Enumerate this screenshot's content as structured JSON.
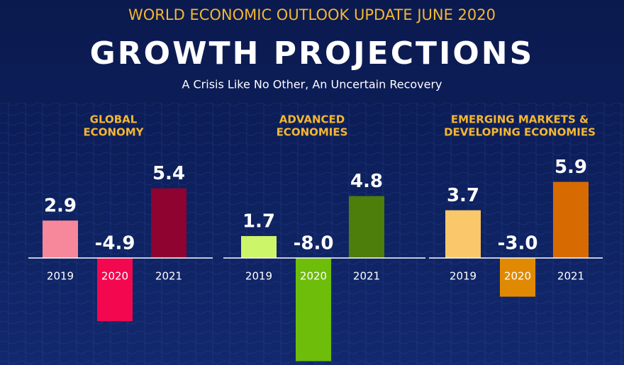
{
  "header": {
    "kicker": "WORLD ECONOMIC OUTLOOK UPDATE JUNE 2020",
    "title": "GROWTH PROJECTIONS",
    "subtitle": "A Crisis Like No Other, An Uncertain Recovery"
  },
  "chart_data": [
    {
      "type": "bar",
      "title": [
        "GLOBAL",
        "ECONOMY"
      ],
      "categories": [
        "2019",
        "2020",
        "2021"
      ],
      "values": [
        2.9,
        -4.9,
        5.4
      ],
      "value_labels": [
        "2.9",
        "-4.9",
        "5.4"
      ],
      "colors": [
        "#f7879a",
        "#f3074f",
        "#8e0330"
      ]
    },
    {
      "type": "bar",
      "title": [
        "ADVANCED",
        "ECONOMIES"
      ],
      "categories": [
        "2019",
        "2020",
        "2021"
      ],
      "values": [
        1.7,
        -8.0,
        4.8
      ],
      "value_labels": [
        "1.7",
        "-8.0",
        "4.8"
      ],
      "colors": [
        "#cdf56a",
        "#6dbd0a",
        "#4d7d0a"
      ]
    },
    {
      "type": "bar",
      "title": [
        "EMERGING MARKETS &",
        "DEVELOPING ECONOMIES"
      ],
      "categories": [
        "2019",
        "2020",
        "2021"
      ],
      "values": [
        3.7,
        -3.0,
        5.9
      ],
      "value_labels": [
        "3.7",
        "-3.0",
        "5.9"
      ],
      "colors": [
        "#fbc76b",
        "#e08a04",
        "#d86a02"
      ]
    }
  ]
}
